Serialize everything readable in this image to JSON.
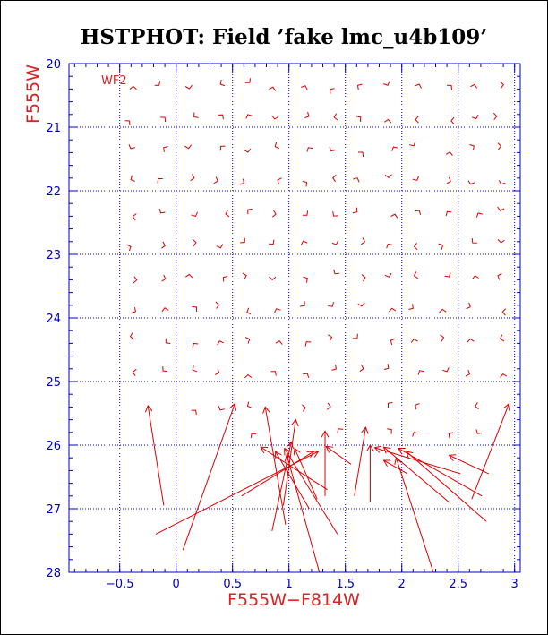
{
  "chart_data": {
    "type": "scatter",
    "title": "HSTPHOT: Field ’fake lmc_u4b109’",
    "xlabel": "F555W−F814W",
    "ylabel": "F555W",
    "panel_label": "WF2",
    "xlim": [
      -0.95,
      3.05
    ],
    "ylim": [
      28,
      20
    ],
    "y_inverted": true,
    "xticks": [
      -0.5,
      0,
      0.5,
      1,
      1.5,
      2,
      2.5,
      3
    ],
    "xtick_labels": [
      "−0.5",
      "0",
      "0.5",
      "1",
      "1.5",
      "2",
      "2.5",
      "3"
    ],
    "yticks": [
      20,
      21,
      22,
      23,
      24,
      25,
      26,
      27,
      28
    ],
    "ytick_labels": [
      "20",
      "21",
      "22",
      "23",
      "24",
      "25",
      "26",
      "27",
      "28"
    ],
    "grid": true,
    "colors": {
      "frame": "#0000cc",
      "grid": "#0000cc",
      "ticks": "#0000cc",
      "tick_labels": "#0000cc",
      "axis_labels": "#dd2222",
      "data": "#dd0000",
      "title": "#000000",
      "panel_label": "#dd2222"
    },
    "series": [
      {
        "marker": "arrow",
        "note_format": "each point: input [x,y] -> measured [x,y]",
        "points": [
          {
            "from": [
              2.28,
              28.0
            ],
            "to": [
              1.95,
              26.2
            ]
          },
          {
            "from": [
              2.75,
              27.2
            ],
            "to": [
              2.04,
              26.1
            ]
          },
          {
            "from": [
              2.71,
              26.8
            ],
            "to": [
              1.97,
              26.05
            ]
          },
          {
            "from": [
              2.42,
              26.9
            ],
            "to": [
              1.84,
              26.03
            ]
          },
          {
            "from": [
              2.77,
              26.45
            ],
            "to": [
              2.42,
              26.16
            ]
          },
          {
            "from": [
              2.52,
              26.45
            ],
            "to": [
              1.76,
              26.04
            ]
          },
          {
            "from": [
              2.62,
              26.85
            ],
            "to": [
              2.95,
              25.35
            ]
          },
          {
            "from": [
              1.43,
              27.4
            ],
            "to": [
              0.96,
              26.05
            ]
          },
          {
            "from": [
              1.18,
              27.0
            ],
            "to": [
              0.88,
              26.1
            ]
          },
          {
            "from": [
              1.25,
              26.85
            ],
            "to": [
              1.05,
              26.05
            ]
          },
          {
            "from": [
              1.34,
              26.7
            ],
            "to": [
              0.75,
              26.03
            ]
          },
          {
            "from": [
              1.58,
              26.8
            ],
            "to": [
              1.68,
              25.72
            ]
          },
          {
            "from": [
              1.55,
              26.3
            ],
            "to": [
              1.33,
              26.02
            ]
          },
          {
            "from": [
              0.95,
              26.95
            ],
            "to": [
              1.06,
              25.6
            ]
          },
          {
            "from": [
              0.85,
              27.35
            ],
            "to": [
              1.02,
              25.95
            ]
          },
          {
            "from": [
              1.27,
              28.0
            ],
            "to": [
              0.98,
              26.15
            ]
          },
          {
            "from": [
              0.97,
              27.25
            ],
            "to": [
              0.79,
              25.4
            ]
          },
          {
            "from": [
              0.06,
              27.65
            ],
            "to": [
              0.52,
              25.35
            ]
          },
          {
            "from": [
              -0.18,
              27.4
            ],
            "to": [
              1.26,
              26.1
            ]
          },
          {
            "from": [
              0.58,
              26.8
            ],
            "to": [
              1.22,
              26.1
            ]
          },
          {
            "from": [
              -0.11,
              26.95
            ],
            "to": [
              -0.25,
              25.38
            ]
          },
          {
            "from": [
              1.32,
              26.8
            ],
            "to": [
              1.32,
              25.78
            ]
          },
          {
            "from": [
              1.72,
              26.9
            ],
            "to": [
              1.72,
              26.0
            ]
          },
          {
            "from": [
              2.05,
              26.45
            ],
            "to": [
              1.84,
              26.24
            ]
          }
        ]
      }
    ]
  }
}
